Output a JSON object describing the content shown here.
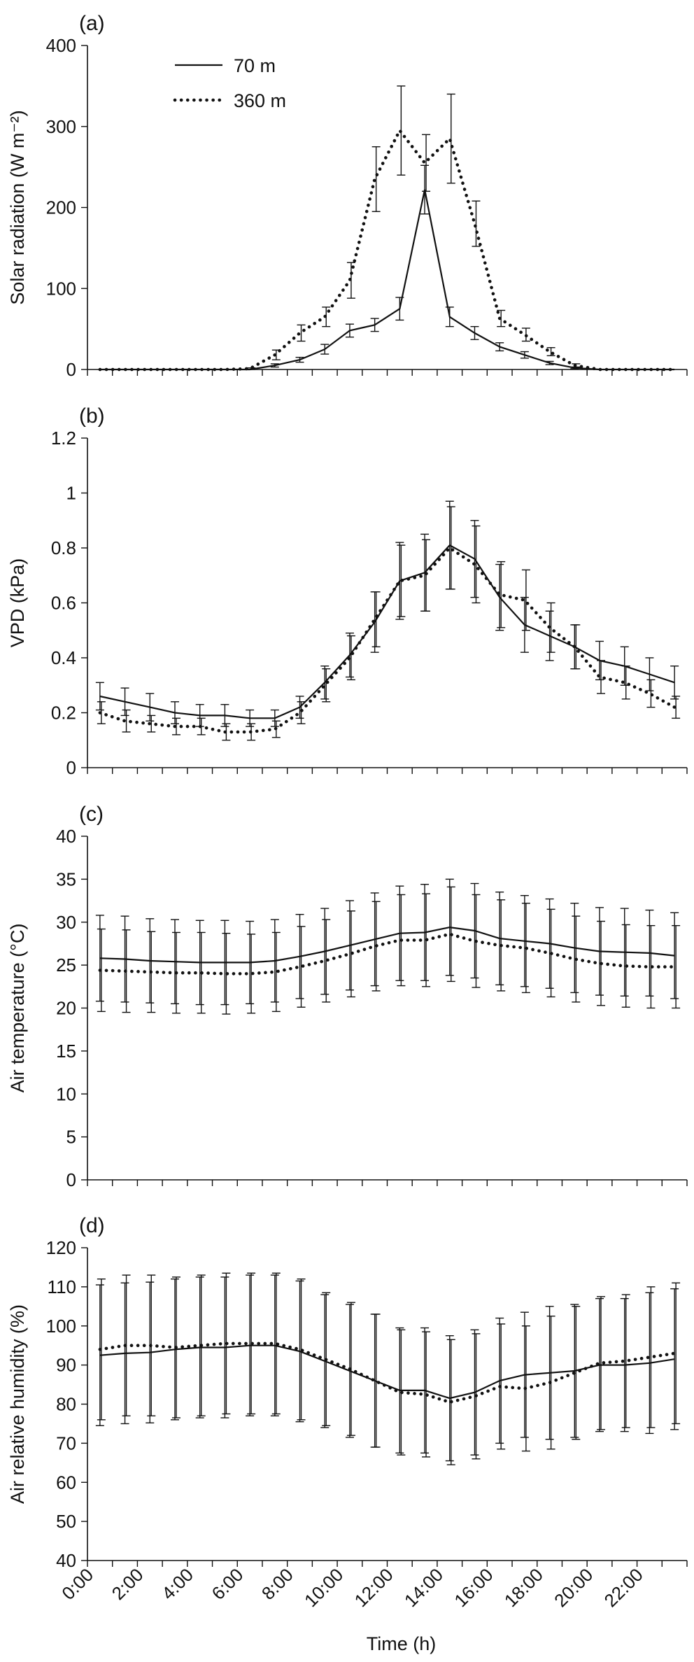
{
  "chart_data": [
    {
      "type": "line",
      "panel_label": "(a)",
      "ylabel": "Solar radiation (W m⁻²)",
      "ylim": [
        0,
        400
      ],
      "yticks": [
        0,
        100,
        200,
        300,
        400
      ],
      "legend": {
        "position": "top-left",
        "entries": [
          "70 m",
          "360 m"
        ]
      },
      "x": [
        0.5,
        1.5,
        2.5,
        3.5,
        4.5,
        5.5,
        6.5,
        7.5,
        8.5,
        9.5,
        10.5,
        11.5,
        12.5,
        13.5,
        14.5,
        15.5,
        16.5,
        17.5,
        18.5,
        19.5,
        20.5,
        21.5,
        22.5,
        23.5
      ],
      "series": [
        {
          "name": "70 m",
          "style": "solid",
          "values": [
            0,
            0,
            0,
            0,
            0,
            0,
            0,
            5,
            12,
            25,
            48,
            55,
            75,
            222,
            65,
            45,
            28,
            18,
            8,
            2,
            0,
            0,
            0,
            0
          ],
          "errors": [
            0,
            0,
            0,
            0,
            0,
            0,
            0,
            2,
            3,
            6,
            8,
            8,
            14,
            30,
            12,
            8,
            5,
            4,
            2,
            1,
            0,
            0,
            0,
            0
          ]
        },
        {
          "name": "360 m",
          "style": "dotted",
          "values": [
            0,
            0,
            0,
            0,
            0,
            0,
            1,
            18,
            45,
            65,
            110,
            235,
            295,
            255,
            285,
            180,
            63,
            43,
            22,
            5,
            0,
            0,
            0,
            0
          ],
          "errors": [
            0,
            0,
            0,
            0,
            0,
            0,
            1,
            6,
            10,
            12,
            22,
            40,
            55,
            35,
            55,
            28,
            10,
            8,
            5,
            2,
            0,
            0,
            0,
            0
          ]
        }
      ]
    },
    {
      "type": "line",
      "panel_label": "(b)",
      "ylabel": "VPD (kPa)",
      "ylim": [
        0,
        1.2
      ],
      "yticks": [
        0,
        0.2,
        0.4,
        0.6,
        0.8,
        1,
        1.2
      ],
      "ytick_labels": [
        "0",
        "0.2",
        "0.4",
        "0.6",
        "0.8",
        "1",
        "1.2"
      ],
      "x": [
        0.5,
        1.5,
        2.5,
        3.5,
        4.5,
        5.5,
        6.5,
        7.5,
        8.5,
        9.5,
        10.5,
        11.5,
        12.5,
        13.5,
        14.5,
        15.5,
        16.5,
        17.5,
        18.5,
        19.5,
        20.5,
        21.5,
        22.5,
        23.5
      ],
      "series": [
        {
          "name": "70 m",
          "style": "solid",
          "values": [
            0.26,
            0.24,
            0.22,
            0.2,
            0.19,
            0.19,
            0.18,
            0.18,
            0.22,
            0.31,
            0.41,
            0.53,
            0.68,
            0.71,
            0.81,
            0.76,
            0.62,
            0.52,
            0.48,
            0.44,
            0.39,
            0.37,
            0.34,
            0.31
          ],
          "errors": [
            0.05,
            0.05,
            0.05,
            0.04,
            0.04,
            0.04,
            0.03,
            0.03,
            0.04,
            0.06,
            0.08,
            0.11,
            0.14,
            0.14,
            0.16,
            0.14,
            0.12,
            0.1,
            0.09,
            0.08,
            0.07,
            0.07,
            0.06,
            0.06
          ]
        },
        {
          "name": "360 m",
          "style": "dotted",
          "values": [
            0.2,
            0.17,
            0.16,
            0.15,
            0.15,
            0.13,
            0.13,
            0.14,
            0.2,
            0.3,
            0.4,
            0.54,
            0.68,
            0.7,
            0.8,
            0.74,
            0.63,
            0.61,
            0.51,
            0.44,
            0.33,
            0.31,
            0.27,
            0.22
          ],
          "errors": [
            0.04,
            0.04,
            0.03,
            0.03,
            0.03,
            0.03,
            0.03,
            0.03,
            0.04,
            0.06,
            0.08,
            0.1,
            0.13,
            0.13,
            0.15,
            0.14,
            0.12,
            0.11,
            0.09,
            0.08,
            0.06,
            0.06,
            0.05,
            0.04
          ]
        }
      ]
    },
    {
      "type": "line",
      "panel_label": "(c)",
      "ylabel": "Air temperature (°C)",
      "ylim": [
        0,
        40
      ],
      "yticks": [
        0,
        5,
        10,
        15,
        20,
        25,
        30,
        35,
        40
      ],
      "x": [
        0.5,
        1.5,
        2.5,
        3.5,
        4.5,
        5.5,
        6.5,
        7.5,
        8.5,
        9.5,
        10.5,
        11.5,
        12.5,
        13.5,
        14.5,
        15.5,
        16.5,
        17.5,
        18.5,
        19.5,
        20.5,
        21.5,
        22.5,
        23.5
      ],
      "series": [
        {
          "name": "70 m",
          "style": "solid",
          "values": [
            25.8,
            25.7,
            25.5,
            25.4,
            25.3,
            25.3,
            25.3,
            25.5,
            26.0,
            26.6,
            27.3,
            28.0,
            28.7,
            28.8,
            29.4,
            29.0,
            28.1,
            27.8,
            27.5,
            27.0,
            26.6,
            26.5,
            26.4,
            26.1
          ],
          "errors": [
            5.0,
            5.0,
            4.9,
            4.9,
            4.9,
            4.9,
            4.8,
            4.8,
            4.9,
            5.0,
            5.2,
            5.4,
            5.5,
            5.6,
            5.6,
            5.5,
            5.4,
            5.3,
            5.2,
            5.2,
            5.1,
            5.1,
            5.0,
            5.0
          ]
        },
        {
          "name": "360 m",
          "style": "dotted",
          "values": [
            24.4,
            24.3,
            24.2,
            24.1,
            24.1,
            24.0,
            24.0,
            24.2,
            24.8,
            25.5,
            26.3,
            27.2,
            27.9,
            27.9,
            28.6,
            27.8,
            27.3,
            27.0,
            26.4,
            25.7,
            25.2,
            24.9,
            24.8,
            24.8
          ],
          "errors": [
            4.8,
            4.8,
            4.7,
            4.7,
            4.7,
            4.7,
            4.6,
            4.6,
            4.7,
            4.8,
            5.0,
            5.2,
            5.3,
            5.4,
            5.5,
            5.4,
            5.3,
            5.2,
            5.1,
            5.0,
            4.9,
            4.8,
            4.8,
            4.8
          ]
        }
      ]
    },
    {
      "type": "line",
      "panel_label": "(d)",
      "ylabel": "Air relative humidity (%)",
      "xlabel": "Time (h)",
      "ylim": [
        40,
        120
      ],
      "yticks": [
        40,
        50,
        60,
        70,
        80,
        90,
        100,
        110,
        120
      ],
      "xtick_labels": [
        "0:00",
        "2:00",
        "4:00",
        "6:00",
        "8:00",
        "10:00",
        "12:00",
        "14:00",
        "16:00",
        "18:00",
        "20:00",
        "22:00"
      ],
      "xlim": [
        0,
        24
      ],
      "x": [
        0.5,
        1.5,
        2.5,
        3.5,
        4.5,
        5.5,
        6.5,
        7.5,
        8.5,
        9.5,
        10.5,
        11.5,
        12.5,
        13.5,
        14.5,
        15.5,
        16.5,
        17.5,
        18.5,
        19.5,
        20.5,
        21.5,
        22.5,
        23.5
      ],
      "series": [
        {
          "name": "70 m",
          "style": "solid",
          "values": [
            92.5,
            93.0,
            93.2,
            94.0,
            94.5,
            94.5,
            95.0,
            95.0,
            93.5,
            91.0,
            88.5,
            86.0,
            83.5,
            83.5,
            81.5,
            83.0,
            86.0,
            87.5,
            88.0,
            88.5,
            90.0,
            90.0,
            90.5,
            91.5
          ],
          "errors": [
            18,
            18,
            18,
            18,
            18,
            18,
            18,
            18,
            18,
            17,
            17,
            17,
            16,
            16,
            16,
            16,
            16,
            16,
            17,
            17,
            17,
            17,
            18,
            18
          ]
        },
        {
          "name": "360 m",
          "style": "dotted",
          "values": [
            94.0,
            95.0,
            95.0,
            94.5,
            95.0,
            95.5,
            95.5,
            95.5,
            94.0,
            91.5,
            89.0,
            86.0,
            83.0,
            82.5,
            80.5,
            82.0,
            84.5,
            84.0,
            85.5,
            88.0,
            90.5,
            91.0,
            92.0,
            93.0
          ],
          "errors": [
            18,
            18,
            18,
            18,
            18,
            18,
            18,
            18,
            18,
            17,
            17,
            17,
            16,
            16,
            16,
            16,
            16,
            16,
            17,
            17,
            17,
            17,
            18,
            18
          ]
        }
      ]
    }
  ]
}
